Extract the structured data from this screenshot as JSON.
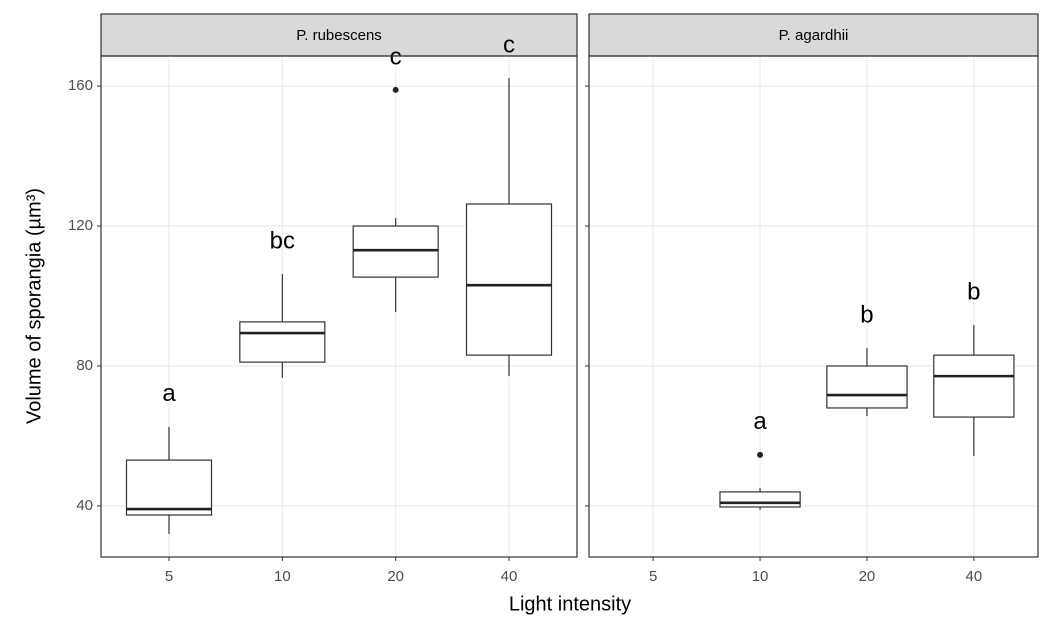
{
  "x_label": "Light intensity",
  "y_label": "Volume of sporangia (µm³)",
  "chart_data": [
    {
      "type": "box",
      "title": "P. rubescens",
      "categories": [
        "5",
        "10",
        "20",
        "40"
      ],
      "boxes": [
        {
          "min": 32,
          "q1": 37.4,
          "median": 39.1,
          "q3": 53.1,
          "max": 62.6,
          "label": "a"
        },
        {
          "min": 76.6,
          "q1": 81.1,
          "median": 89.4,
          "q3": 92.6,
          "max": 106.3,
          "label": "bc"
        },
        {
          "min": 95.4,
          "q1": 105.4,
          "median": 113.1,
          "q3": 120,
          "max": 122.3,
          "outliers": [
            158.9
          ],
          "label": "c"
        },
        {
          "min": 77.1,
          "q1": 83.1,
          "median": 103.1,
          "q3": 126.3,
          "max": 162.3,
          "label": "c"
        }
      ],
      "ylim": [
        25.4,
        168.6
      ],
      "yticks": [
        40,
        80,
        120,
        160
      ],
      "grid": true
    },
    {
      "type": "box",
      "title": "P. agardhii",
      "categories": [
        "5",
        "10",
        "20",
        "40"
      ],
      "boxes": [
        null,
        {
          "min": 38.9,
          "q1": 39.7,
          "median": 40.9,
          "q3": 44,
          "max": 45.1,
          "outliers": [
            54.6
          ],
          "label": "a"
        },
        {
          "min": 65.7,
          "q1": 68,
          "median": 71.7,
          "q3": 80,
          "max": 85.1,
          "label": "b"
        },
        {
          "min": 54.3,
          "q1": 65.4,
          "median": 77.1,
          "q3": 83.1,
          "max": 91.7,
          "label": "b"
        }
      ],
      "ylim": [
        25.4,
        168.6
      ],
      "yticks": [
        40,
        80,
        120,
        160
      ],
      "grid": true
    }
  ]
}
